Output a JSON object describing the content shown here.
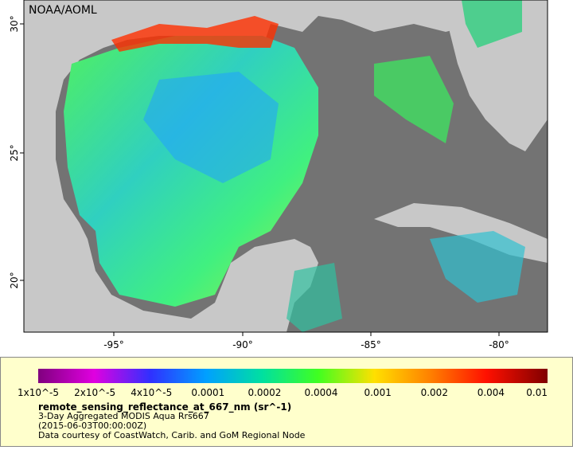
{
  "header": {
    "title": "NOAA/AOML"
  },
  "axes": {
    "x_labels": [
      "-95°",
      "-90°",
      "-85°",
      "-80°"
    ],
    "y_labels": [
      "30°",
      "25°",
      "20°"
    ]
  },
  "colorbar": {
    "labels": [
      "1x10^-5",
      "2x10^-5",
      "4x10^-5",
      "0.0001",
      "0.0002",
      "0.0004",
      "0.001",
      "0.002",
      "0.004",
      "0.01"
    ]
  },
  "caption": {
    "title": "remote_sensing_reflectance_at_667_nm (sr^-1)",
    "lines": [
      "3-Day Aggregated MODIS Aqua Rrs667",
      "(2015-06-03T00:00:00Z)",
      "Data courtesy of CoastWatch, Carib. and GoM Regional Node"
    ]
  }
}
